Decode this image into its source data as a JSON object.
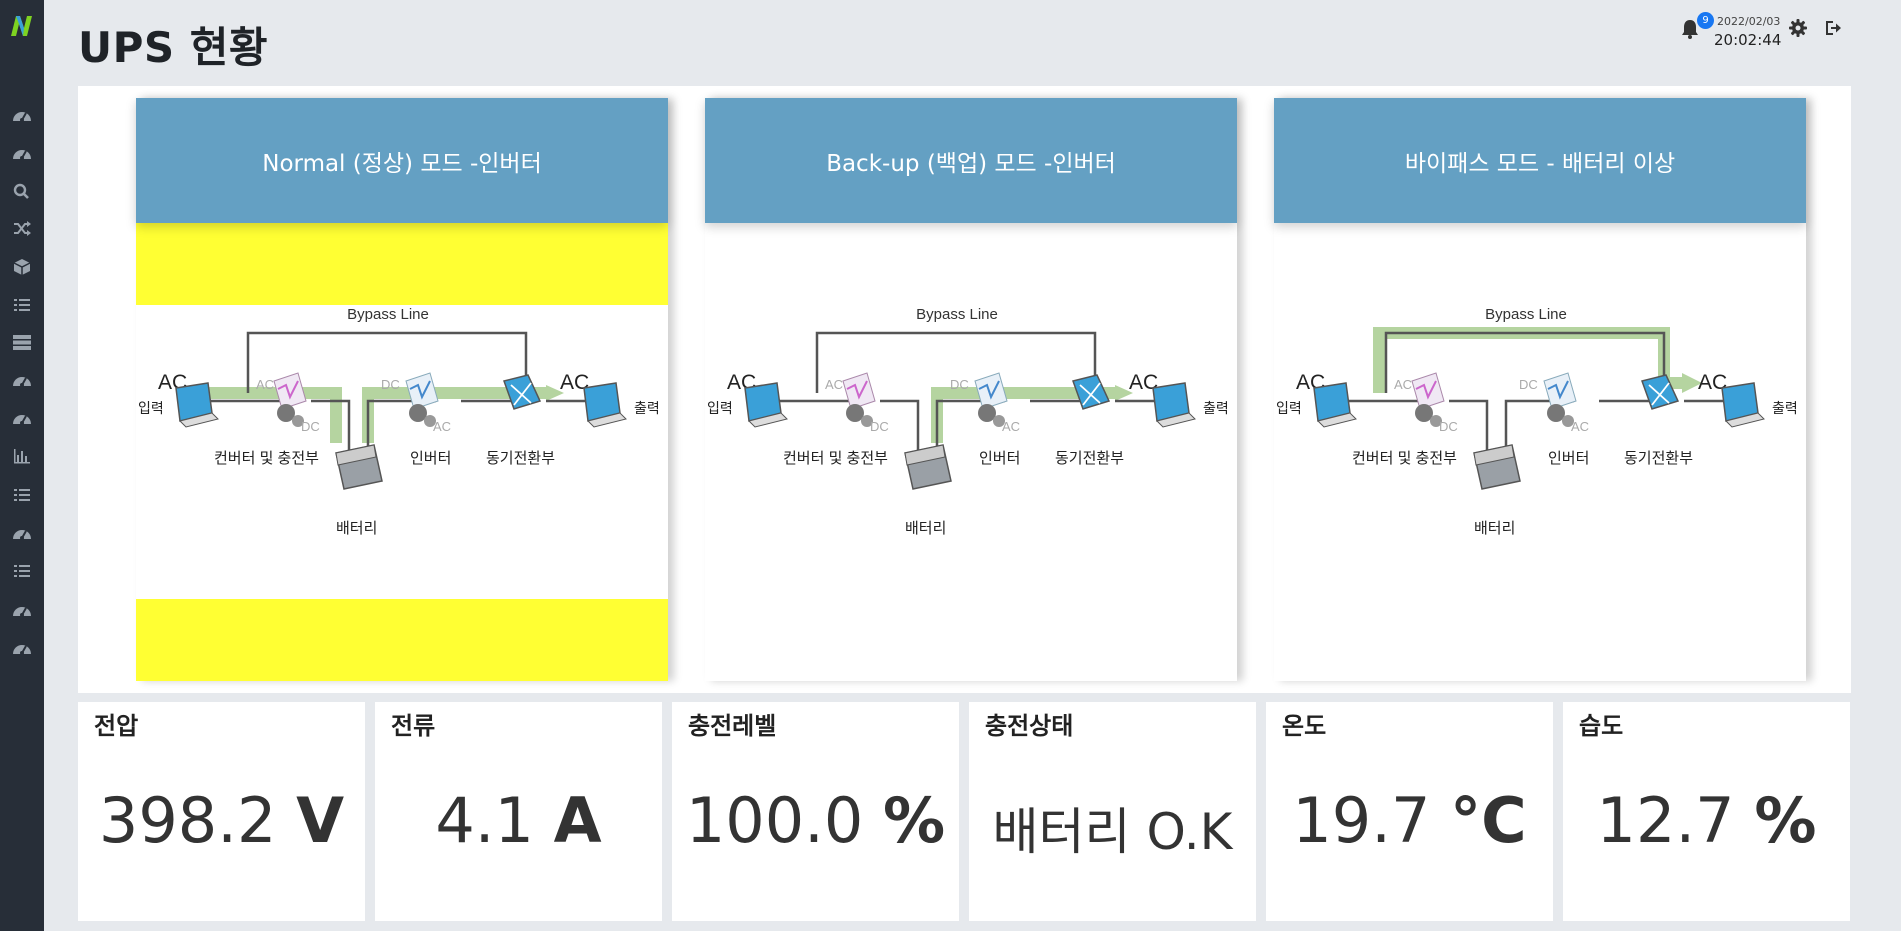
{
  "header": {
    "title": "UPS 현황",
    "notification_count": "9",
    "date": "2022/02/03",
    "time": "20:02:44"
  },
  "sidebar": {
    "icons": [
      "dashboard-icon",
      "dashboard-icon",
      "search-icon",
      "shuffle-icon",
      "cube-icon",
      "list-icon",
      "server-icon",
      "dashboard-icon",
      "dashboard-icon",
      "bar-chart-icon",
      "list-icon",
      "dashboard-icon",
      "list-icon",
      "dashboard-icon",
      "dashboard-icon"
    ]
  },
  "modes": [
    {
      "title": "Normal (정상) 모드 -인버터",
      "highlight": "yellow",
      "flow": "normal"
    },
    {
      "title": "Back-up (백업) 모드 -인버터",
      "highlight": "",
      "flow": "backup"
    },
    {
      "title": "바이패스 모드 - 배터리 이상",
      "highlight": "",
      "flow": "bypass"
    }
  ],
  "diagram": {
    "bypass_line": "Bypass Line",
    "ac_in": "AC",
    "ac_out": "AC",
    "input_label": "입력",
    "output_label": "출력",
    "converter_label": "컨버터 및 충전부",
    "inverter_label": "인버터",
    "switch_label": "동기전환부",
    "battery_label": "배터리",
    "ac_small": "AC",
    "dc_small": "DC"
  },
  "metrics": [
    {
      "label": "전압",
      "value": "398.2",
      "unit": "V"
    },
    {
      "label": "전류",
      "value": "4.1",
      "unit": "A"
    },
    {
      "label": "충전레벨",
      "value": "100.0",
      "unit": "%"
    },
    {
      "label": "충전상태",
      "value": "배터리 O.K",
      "unit": ""
    },
    {
      "label": "온도",
      "value": "19.7",
      "unit": "°C"
    },
    {
      "label": "습도",
      "value": "12.7",
      "unit": "%"
    }
  ],
  "colors": {
    "sidebar": "#272e38",
    "mode_header": "#64a0c3",
    "highlight": "#ffff33",
    "flow_arrow": "#b5d4a0",
    "badge": "#1877f2"
  }
}
